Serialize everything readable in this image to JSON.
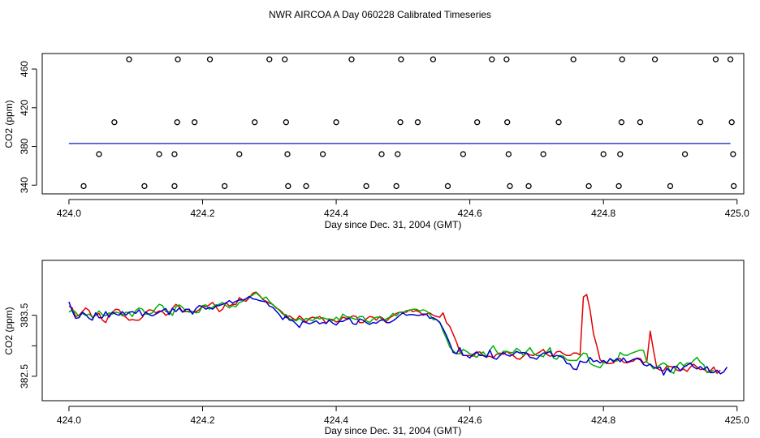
{
  "title": "NWR AIRCOA A  Day 060228  Calibrated Timeseries",
  "colors": {
    "red": "#e00000",
    "green": "#00b000",
    "blue": "#0000d0",
    "axis": "#000000"
  },
  "chart_data": [
    {
      "type": "scatter",
      "xlabel": "Day since Dec. 31, 2004 (GMT)",
      "ylabel": "CO2 (ppm)",
      "xlim": [
        423.96,
        425.01
      ],
      "ylim": [
        331,
        476
      ],
      "xticks": [
        424.0,
        424.2,
        424.4,
        424.6,
        424.8,
        425.0
      ],
      "xtick_labels": [
        "424.0",
        "424.2",
        "424.4",
        "424.6",
        "424.8",
        "425.0"
      ],
      "yticks": [
        340,
        380,
        420,
        460
      ],
      "ytick_labels": [
        "340",
        "380",
        "420",
        "460"
      ],
      "baseline": {
        "value": 383,
        "x": [
          424.0,
          424.99
        ]
      },
      "points": [
        {
          "x": 424.09,
          "y": 470
        },
        {
          "x": 424.163,
          "y": 470
        },
        {
          "x": 424.211,
          "y": 470
        },
        {
          "x": 424.3,
          "y": 470
        },
        {
          "x": 424.323,
          "y": 470
        },
        {
          "x": 424.423,
          "y": 470
        },
        {
          "x": 424.497,
          "y": 470
        },
        {
          "x": 424.545,
          "y": 470
        },
        {
          "x": 424.633,
          "y": 470
        },
        {
          "x": 424.655,
          "y": 470
        },
        {
          "x": 424.755,
          "y": 470
        },
        {
          "x": 424.828,
          "y": 470
        },
        {
          "x": 424.877,
          "y": 470
        },
        {
          "x": 424.968,
          "y": 470
        },
        {
          "x": 424.99,
          "y": 470
        },
        {
          "x": 424.068,
          "y": 405
        },
        {
          "x": 424.162,
          "y": 405
        },
        {
          "x": 424.188,
          "y": 405
        },
        {
          "x": 424.278,
          "y": 405
        },
        {
          "x": 424.325,
          "y": 405
        },
        {
          "x": 424.4,
          "y": 405
        },
        {
          "x": 424.496,
          "y": 405
        },
        {
          "x": 424.522,
          "y": 405
        },
        {
          "x": 424.611,
          "y": 405
        },
        {
          "x": 424.656,
          "y": 405
        },
        {
          "x": 424.733,
          "y": 405
        },
        {
          "x": 424.827,
          "y": 405
        },
        {
          "x": 424.855,
          "y": 405
        },
        {
          "x": 424.945,
          "y": 405
        },
        {
          "x": 424.992,
          "y": 405
        },
        {
          "x": 424.045,
          "y": 372
        },
        {
          "x": 424.135,
          "y": 372
        },
        {
          "x": 424.158,
          "y": 372
        },
        {
          "x": 424.255,
          "y": 372
        },
        {
          "x": 424.327,
          "y": 372
        },
        {
          "x": 424.38,
          "y": 372
        },
        {
          "x": 424.468,
          "y": 372
        },
        {
          "x": 424.492,
          "y": 372
        },
        {
          "x": 424.59,
          "y": 372
        },
        {
          "x": 424.658,
          "y": 372
        },
        {
          "x": 424.71,
          "y": 372
        },
        {
          "x": 424.8,
          "y": 372
        },
        {
          "x": 424.825,
          "y": 372
        },
        {
          "x": 424.922,
          "y": 372
        },
        {
          "x": 424.994,
          "y": 372
        },
        {
          "x": 424.022,
          "y": 339
        },
        {
          "x": 424.113,
          "y": 339
        },
        {
          "x": 424.158,
          "y": 339
        },
        {
          "x": 424.233,
          "y": 339
        },
        {
          "x": 424.328,
          "y": 339
        },
        {
          "x": 424.355,
          "y": 339
        },
        {
          "x": 424.445,
          "y": 339
        },
        {
          "x": 424.49,
          "y": 339
        },
        {
          "x": 424.567,
          "y": 339
        },
        {
          "x": 424.66,
          "y": 339
        },
        {
          "x": 424.688,
          "y": 339
        },
        {
          "x": 424.778,
          "y": 339
        },
        {
          "x": 424.823,
          "y": 339
        },
        {
          "x": 424.9,
          "y": 339
        },
        {
          "x": 424.995,
          "y": 339
        }
      ]
    },
    {
      "type": "line",
      "xlabel": "Day since Dec. 31, 2004 (GMT)",
      "ylabel": "CO2 (ppm)",
      "xlim": [
        423.96,
        425.01
      ],
      "ylim": [
        382.1,
        384.4
      ],
      "xticks": [
        424.0,
        424.2,
        424.4,
        424.6,
        424.8,
        425.0
      ],
      "xtick_labels": [
        "424.0",
        "424.2",
        "424.4",
        "424.6",
        "424.8",
        "425.0"
      ],
      "yticks": [
        382.5,
        383.0,
        383.5
      ],
      "ytick_labels": [
        "382.5",
        "",
        "383.5"
      ],
      "x_start": 424.0,
      "x_step": 0.005,
      "series": [
        {
          "name": "red",
          "values": [
            383.65,
            383.62,
            383.48,
            383.5,
            383.56,
            383.62,
            383.58,
            383.46,
            383.5,
            383.53,
            383.42,
            383.38,
            383.5,
            383.55,
            383.6,
            383.59,
            383.51,
            383.47,
            383.42,
            383.43,
            383.42,
            383.42,
            383.47,
            383.55,
            383.59,
            383.58,
            383.54,
            383.57,
            383.56,
            383.5,
            383.53,
            383.62,
            383.68,
            383.64,
            383.56,
            383.56,
            383.57,
            383.56,
            383.56,
            383.59,
            383.66,
            383.64,
            383.67,
            383.71,
            383.64,
            383.56,
            383.6,
            383.71,
            383.65,
            383.68,
            383.68,
            383.79,
            383.75,
            383.73,
            383.79,
            383.86,
            383.88,
            383.83,
            383.76,
            383.73,
            383.7,
            383.68,
            383.62,
            383.59,
            383.54,
            383.46,
            383.49,
            383.45,
            383.42,
            383.49,
            383.44,
            383.39,
            383.45,
            383.47,
            383.45,
            383.48,
            383.44,
            383.36,
            383.44,
            383.43,
            383.39,
            383.41,
            383.47,
            383.45,
            383.46,
            383.49,
            383.48,
            383.38,
            383.38,
            383.44,
            383.48,
            383.47,
            383.42,
            383.48,
            383.45,
            383.4,
            383.46,
            383.49,
            383.53,
            383.55,
            383.55,
            383.55,
            383.59,
            383.56,
            383.58,
            383.55,
            383.5,
            383.52,
            383.54,
            383.5,
            383.48,
            383.47,
            383.54,
            383.38,
            383.32,
            383.19,
            383.06,
            382.9,
            382.84,
            382.84,
            382.84,
            382.83,
            382.89,
            382.9,
            382.84,
            382.82,
            382.83,
            382.8,
            382.86,
            382.88,
            382.86,
            382.91,
            382.87,
            382.84,
            382.79,
            382.78,
            382.83,
            382.88,
            382.85,
            382.84,
            382.87,
            382.9,
            382.94,
            382.86,
            382.83,
            382.84,
            382.9,
            382.91,
            382.87,
            382.84,
            382.84,
            382.88,
            382.88,
            382.85,
            383.8,
            383.84,
            383.59,
            383.2,
            383.0,
            382.77,
            382.73,
            382.71,
            382.71,
            382.72,
            382.78,
            382.79,
            382.73,
            382.72,
            382.74,
            382.75,
            382.8,
            382.79,
            382.72,
            382.75,
            383.24,
            382.92,
            382.63,
            382.6,
            382.59,
            382.67,
            382.66,
            382.65,
            382.6,
            382.59,
            382.62,
            382.58,
            382.65,
            382.7,
            382.65,
            382.61,
            382.62,
            382.57,
            382.59,
            382.65,
            382.55,
            382.6
          ]
        },
        {
          "name": "green",
          "values": [
            383.55,
            383.59,
            383.55,
            383.48,
            383.53,
            383.5,
            383.52,
            383.47,
            383.51,
            383.57,
            383.51,
            383.49,
            383.54,
            383.52,
            383.55,
            383.54,
            383.49,
            383.55,
            383.54,
            383.48,
            383.58,
            383.62,
            383.6,
            383.52,
            383.52,
            383.54,
            383.62,
            383.68,
            383.66,
            383.56,
            383.56,
            383.5,
            383.64,
            383.67,
            383.63,
            383.57,
            383.55,
            383.56,
            383.54,
            383.55,
            383.66,
            383.67,
            383.6,
            383.63,
            383.67,
            383.68,
            383.71,
            383.66,
            383.62,
            383.66,
            383.64,
            383.71,
            383.73,
            383.77,
            383.8,
            383.83,
            383.87,
            383.82,
            383.77,
            383.8,
            383.73,
            383.67,
            383.63,
            383.58,
            383.52,
            383.51,
            383.44,
            383.43,
            383.41,
            383.45,
            383.41,
            383.45,
            383.43,
            383.41,
            383.47,
            383.44,
            383.46,
            383.44,
            383.44,
            383.41,
            383.47,
            383.42,
            383.52,
            383.48,
            383.47,
            383.45,
            383.43,
            383.48,
            383.48,
            383.41,
            383.38,
            383.44,
            383.47,
            383.47,
            383.42,
            383.44,
            383.47,
            383.53,
            383.49,
            383.55,
            383.54,
            383.58,
            383.58,
            383.6,
            383.6,
            383.57,
            383.59,
            383.57,
            383.52,
            383.43,
            383.43,
            383.39,
            383.24,
            383.12,
            382.98,
            382.92,
            382.87,
            382.87,
            382.94,
            382.91,
            382.87,
            382.85,
            382.81,
            382.86,
            382.9,
            382.82,
            382.93,
            383.0,
            382.91,
            382.84,
            382.91,
            382.91,
            382.89,
            382.89,
            382.96,
            382.92,
            382.84,
            382.91,
            382.97,
            382.88,
            382.84,
            382.84,
            382.82,
            382.9,
            382.97,
            382.8,
            382.78,
            382.84,
            382.83,
            382.77,
            382.76,
            382.76,
            382.76,
            382.82,
            382.88,
            382.87,
            382.71,
            382.68,
            382.66,
            382.64,
            382.72,
            382.72,
            382.79,
            382.76,
            382.75,
            382.89,
            382.85,
            382.84,
            382.87,
            382.89,
            382.91,
            382.93,
            382.92,
            382.73,
            382.69,
            382.62,
            382.65,
            382.69,
            382.72,
            382.68,
            382.58,
            382.55,
            382.67,
            382.73,
            382.67,
            382.72,
            382.7,
            382.76,
            382.81,
            382.73,
            382.69,
            382.56,
            382.57,
            382.6
          ]
        },
        {
          "name": "blue",
          "values": [
            383.72,
            383.57,
            383.45,
            383.46,
            383.55,
            383.51,
            383.45,
            383.42,
            383.54,
            383.46,
            383.46,
            383.56,
            383.47,
            383.55,
            383.52,
            383.5,
            383.56,
            383.5,
            383.55,
            383.56,
            383.53,
            383.59,
            383.49,
            383.55,
            383.51,
            383.49,
            383.52,
            383.55,
            383.58,
            383.61,
            383.51,
            383.61,
            383.56,
            383.62,
            383.55,
            383.6,
            383.6,
            383.52,
            383.61,
            383.66,
            383.64,
            383.6,
            383.63,
            383.6,
            383.65,
            383.66,
            383.68,
            383.7,
            383.74,
            383.7,
            383.73,
            383.75,
            383.75,
            383.77,
            383.81,
            383.77,
            383.76,
            383.74,
            383.73,
            383.72,
            383.65,
            383.63,
            383.57,
            383.51,
            383.43,
            383.49,
            383.42,
            383.41,
            383.36,
            383.3,
            383.4,
            383.38,
            383.36,
            383.38,
            383.41,
            383.36,
            383.38,
            383.37,
            383.42,
            383.37,
            383.34,
            383.4,
            383.4,
            383.43,
            383.45,
            383.36,
            383.35,
            383.44,
            383.42,
            383.38,
            383.35,
            383.38,
            383.37,
            383.41,
            383.43,
            383.38,
            383.38,
            383.41,
            383.45,
            383.5,
            383.54,
            383.5,
            383.51,
            383.51,
            383.5,
            383.5,
            383.52,
            383.52,
            383.45,
            383.46,
            383.43,
            383.38,
            383.28,
            383.17,
            383.04,
            382.89,
            382.87,
            382.97,
            382.84,
            382.84,
            382.8,
            382.86,
            382.9,
            382.84,
            382.84,
            382.81,
            382.93,
            382.8,
            382.78,
            382.84,
            382.89,
            382.85,
            382.83,
            382.86,
            382.91,
            382.88,
            382.89,
            382.88,
            382.81,
            382.8,
            382.78,
            382.84,
            382.88,
            382.88,
            382.91,
            382.82,
            382.84,
            382.83,
            382.8,
            382.71,
            382.7,
            382.62,
            382.61,
            382.75,
            382.73,
            382.73,
            382.81,
            382.74,
            382.76,
            382.72,
            382.76,
            382.72,
            382.79,
            382.74,
            382.79,
            382.74,
            382.8,
            382.73,
            382.75,
            382.78,
            382.79,
            382.77,
            382.69,
            382.67,
            382.7,
            382.65,
            382.63,
            382.65,
            382.52,
            382.63,
            382.57,
            382.66,
            382.66,
            382.59,
            382.65,
            382.68,
            382.72,
            382.65,
            382.62,
            382.66,
            382.61,
            382.66,
            382.56,
            382.56,
            382.6,
            382.54,
            382.57,
            382.65
          ]
        }
      ]
    }
  ]
}
